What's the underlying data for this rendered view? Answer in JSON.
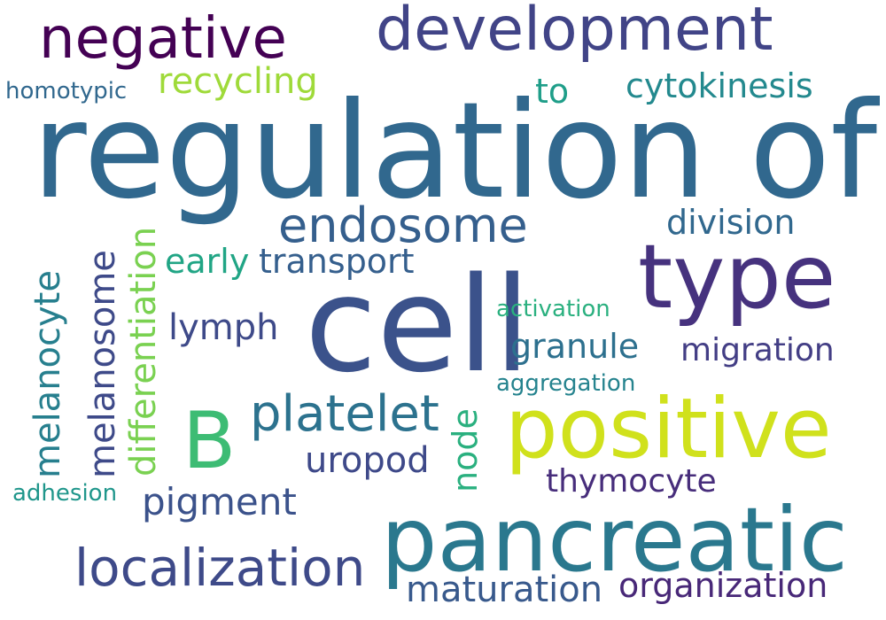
{
  "words": [
    {
      "text": "regulation of",
      "color": "#31688e"
    },
    {
      "text": "cell",
      "color": "#3b528b"
    },
    {
      "text": "type",
      "color": "#46327e"
    },
    {
      "text": "pancreatic",
      "color": "#2a788e"
    },
    {
      "text": "positive",
      "color": "#d0e11c"
    },
    {
      "text": "development",
      "color": "#414487"
    },
    {
      "text": "negative",
      "color": "#440154"
    },
    {
      "text": "endosome",
      "color": "#355f8d"
    },
    {
      "text": "localization",
      "color": "#3e4a89"
    },
    {
      "text": "platelet",
      "color": "#2c728e"
    },
    {
      "text": "B",
      "color": "#3dbc74"
    },
    {
      "text": "cytokinesis",
      "color": "#23898e"
    },
    {
      "text": "recycling",
      "color": "#9fda3a"
    },
    {
      "text": "division",
      "color": "#31688e"
    },
    {
      "text": "transport",
      "color": "#355f8d"
    },
    {
      "text": "early",
      "color": "#21a585"
    },
    {
      "text": "lymph",
      "color": "#3e4a89"
    },
    {
      "text": "granule",
      "color": "#2d708e"
    },
    {
      "text": "migration",
      "color": "#433e85"
    },
    {
      "text": "uropod",
      "color": "#3e4989"
    },
    {
      "text": "pigment",
      "color": "#3b528b"
    },
    {
      "text": "thymocyte",
      "color": "#472d7b"
    },
    {
      "text": "maturation",
      "color": "#38598c"
    },
    {
      "text": "organization",
      "color": "#482878"
    },
    {
      "text": "homotypic",
      "color": "#31688e"
    },
    {
      "text": "to",
      "color": "#1f9e89"
    },
    {
      "text": "activation",
      "color": "#2ab07f"
    },
    {
      "text": "aggregation",
      "color": "#25838e"
    },
    {
      "text": "adhesion",
      "color": "#1f968b"
    },
    {
      "text": "melanocyte",
      "color": "#277f8e"
    },
    {
      "text": "melanosome",
      "color": "#3e4a89"
    },
    {
      "text": "differentiation",
      "color": "#7ad151"
    },
    {
      "text": "node",
      "color": "#2ab07f"
    }
  ]
}
